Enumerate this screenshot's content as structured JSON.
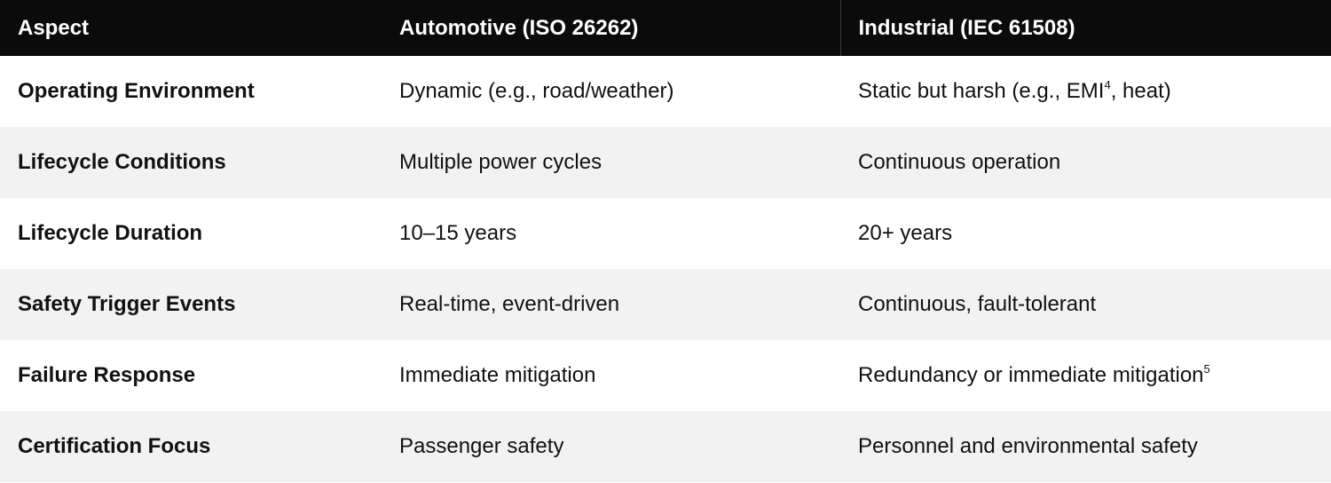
{
  "header": {
    "aspect": "Aspect",
    "automotive": "Automotive (ISO 26262)",
    "industrial": "Industrial (IEC 61508)"
  },
  "rows": [
    {
      "aspect": "Operating Environment",
      "automotive": "Dynamic (e.g., road/weather)",
      "industrial": "Static but harsh (e.g., EMI",
      "industrial_sup": "4",
      "industrial_after": ", heat)"
    },
    {
      "aspect": "Lifecycle Conditions",
      "automotive": "Multiple power cycles",
      "industrial": "Continuous operation"
    },
    {
      "aspect": "Lifecycle Duration",
      "automotive": "10–15 years",
      "industrial": "20+ years"
    },
    {
      "aspect": "Safety Trigger Events",
      "automotive": "Real-time, event-driven",
      "industrial": "Continuous, fault-tolerant"
    },
    {
      "aspect": "Failure Response",
      "automotive": "Immediate mitigation",
      "industrial": "Redundancy or immediate mitigation",
      "industrial_sup": "5"
    },
    {
      "aspect": "Certification Focus",
      "automotive": "Passenger safety",
      "industrial": "Personnel and environmental safety"
    }
  ]
}
